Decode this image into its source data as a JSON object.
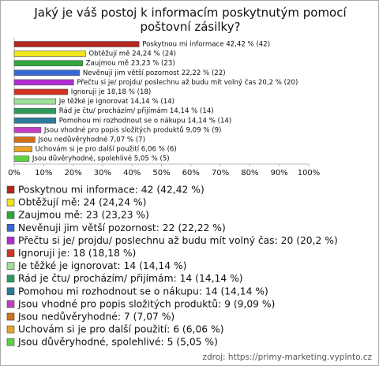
{
  "chart_data": {
    "type": "bar",
    "orientation": "horizontal",
    "title": "Jaký je váš postoj k informacím poskytnutým pomocí poštovní zásilky?",
    "values": [
      42.42,
      24.24,
      23.23,
      22.22,
      20.2,
      18.18,
      14.14,
      14.14,
      14.14,
      9.09,
      7.07,
      6.06,
      5.05
    ],
    "value_labels": [
      "Poskytnou mi informace 42,42 % (42)",
      "Obtěžují mě 24,24 % (24)",
      "Zaujmou mě 23,23 % (23)",
      "Nevěnuji jim větší pozornost 22,22 % (22)",
      "Přečtu si je/ projdu/ poslechnu až budu mít volný čas 20,2 % (20)",
      "Ignoruji je 18,18 % (18)",
      "Je těžké je ignorovat 14,14 % (14)",
      "Rád je čtu/ procházím/ přijímám 14,14 % (14)",
      "Pomohou mi rozhodnout se o nákupu 14,14 % (14)",
      "Jsou vhodné pro popis složitých produktů 9,09 % (9)",
      "Jsou nedůvěryhodné 7,07 % (7)",
      "Uchovám si je pro další použití 6,06 % (6)",
      "Jsou důvěryhodné, spolehlivé 5,05 % (5)"
    ],
    "colors": [
      "#b5261e",
      "#f0e41a",
      "#2ea83a",
      "#3568d4",
      "#b02cd0",
      "#d2321e",
      "#9ee09a",
      "#2e9a5a",
      "#2a7c98",
      "#c23ec4",
      "#d0701a",
      "#e8a428",
      "#5ad43e"
    ],
    "legend_labels": [
      "Poskytnou mi informace: 42 (42,42 %)",
      "Obtěžují mě: 24 (24,24 %)",
      "Zaujmou mě: 23 (23,23 %)",
      "Nevěnuji jim větší pozornost: 22 (22,22 %)",
      "Přečtu si je/ projdu/ poslechnu až budu mít volný čas: 20 (20,2 %)",
      "Ignoruji je: 18 (18,18 %)",
      "Je těžké je ignorovat: 14 (14,14 %)",
      "Rád je čtu/ procházím/ přijímám: 14 (14,14 %)",
      "Pomohou mi rozhodnout se o nákupu: 14 (14,14 %)",
      "Jsou vhodné pro popis složitých produktů: 9 (9,09 %)",
      "Jsou nedůvěryhodné: 7 (7,07 %)",
      "Uchovám si je pro další použití: 6 (6,06 %)",
      "Jsou důvěryhodné, spolehlivé: 5 (5,05 %)"
    ],
    "xlim": [
      0,
      100
    ],
    "xticks": [
      {
        "value": 0,
        "label": "0%"
      },
      {
        "value": 10,
        "label": "10%"
      },
      {
        "value": 20,
        "label": "20%"
      },
      {
        "value": 30,
        "label": "30%"
      },
      {
        "value": 40,
        "label": "40%"
      },
      {
        "value": 50,
        "label": "50%"
      },
      {
        "value": 60,
        "label": "60%"
      },
      {
        "value": 70,
        "label": "70%"
      },
      {
        "value": 80,
        "label": "80%"
      },
      {
        "value": 90,
        "label": "90%"
      },
      {
        "value": 100,
        "label": "100%"
      }
    ],
    "source": "zdroj: https://primy-marketing.vyplnto.cz"
  }
}
